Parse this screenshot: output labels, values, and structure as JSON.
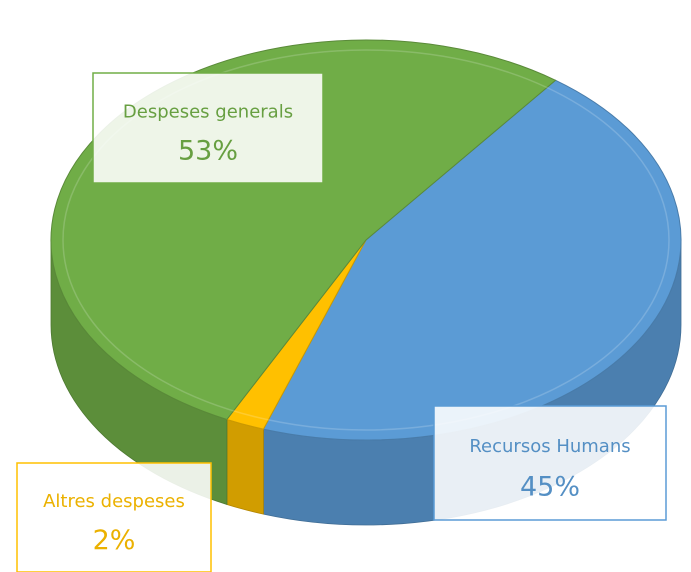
{
  "chart_data": {
    "type": "pie",
    "categories": [
      "Recursos Humans",
      "Altres despeses",
      "Despeses generals"
    ],
    "values": [
      45,
      2,
      53
    ],
    "value_labels": [
      "45%",
      "2%",
      "53%"
    ],
    "colors": [
      "#5b9bd5",
      "#ffc000",
      "#70ad47"
    ]
  }
}
